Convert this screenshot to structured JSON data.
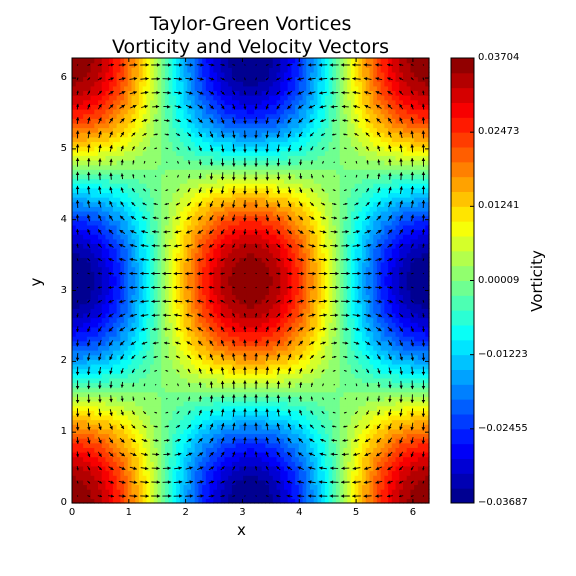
{
  "chart_data": {
    "type": "heatmap",
    "title": [
      "Taylor-Green Vortices",
      "Vorticity and Velocity Vectors"
    ],
    "xlabel": "x",
    "ylabel": "y",
    "colorbar_label": "Vorticity",
    "xlim": [
      0,
      6.2832
    ],
    "ylim": [
      0,
      6.2832
    ],
    "x_ticks": [
      0,
      1,
      2,
      3,
      4,
      5,
      6
    ],
    "y_ticks": [
      0,
      1,
      2,
      3,
      4,
      5,
      6
    ],
    "field": "vorticity = A * cos(x) * cos(y), A = 0.03704",
    "vorticity_amplitude": 0.03704,
    "velocity_field": "u = sin(x) * cos(y), v = -cos(x) * sin(y)",
    "vector_grid": 32,
    "clim": [
      -0.03687,
      0.03704
    ],
    "colorbar_ticks": [
      "0.03704",
      "0.02473",
      "0.01241",
      "0.00009",
      "−0.01223",
      "−0.02455",
      "−0.03687"
    ],
    "colorbar_levels": 30,
    "colormap": "jet",
    "grid": false,
    "colors": {
      "arrow": "#000000",
      "frame": "#000000",
      "background": "#ffffff"
    }
  }
}
